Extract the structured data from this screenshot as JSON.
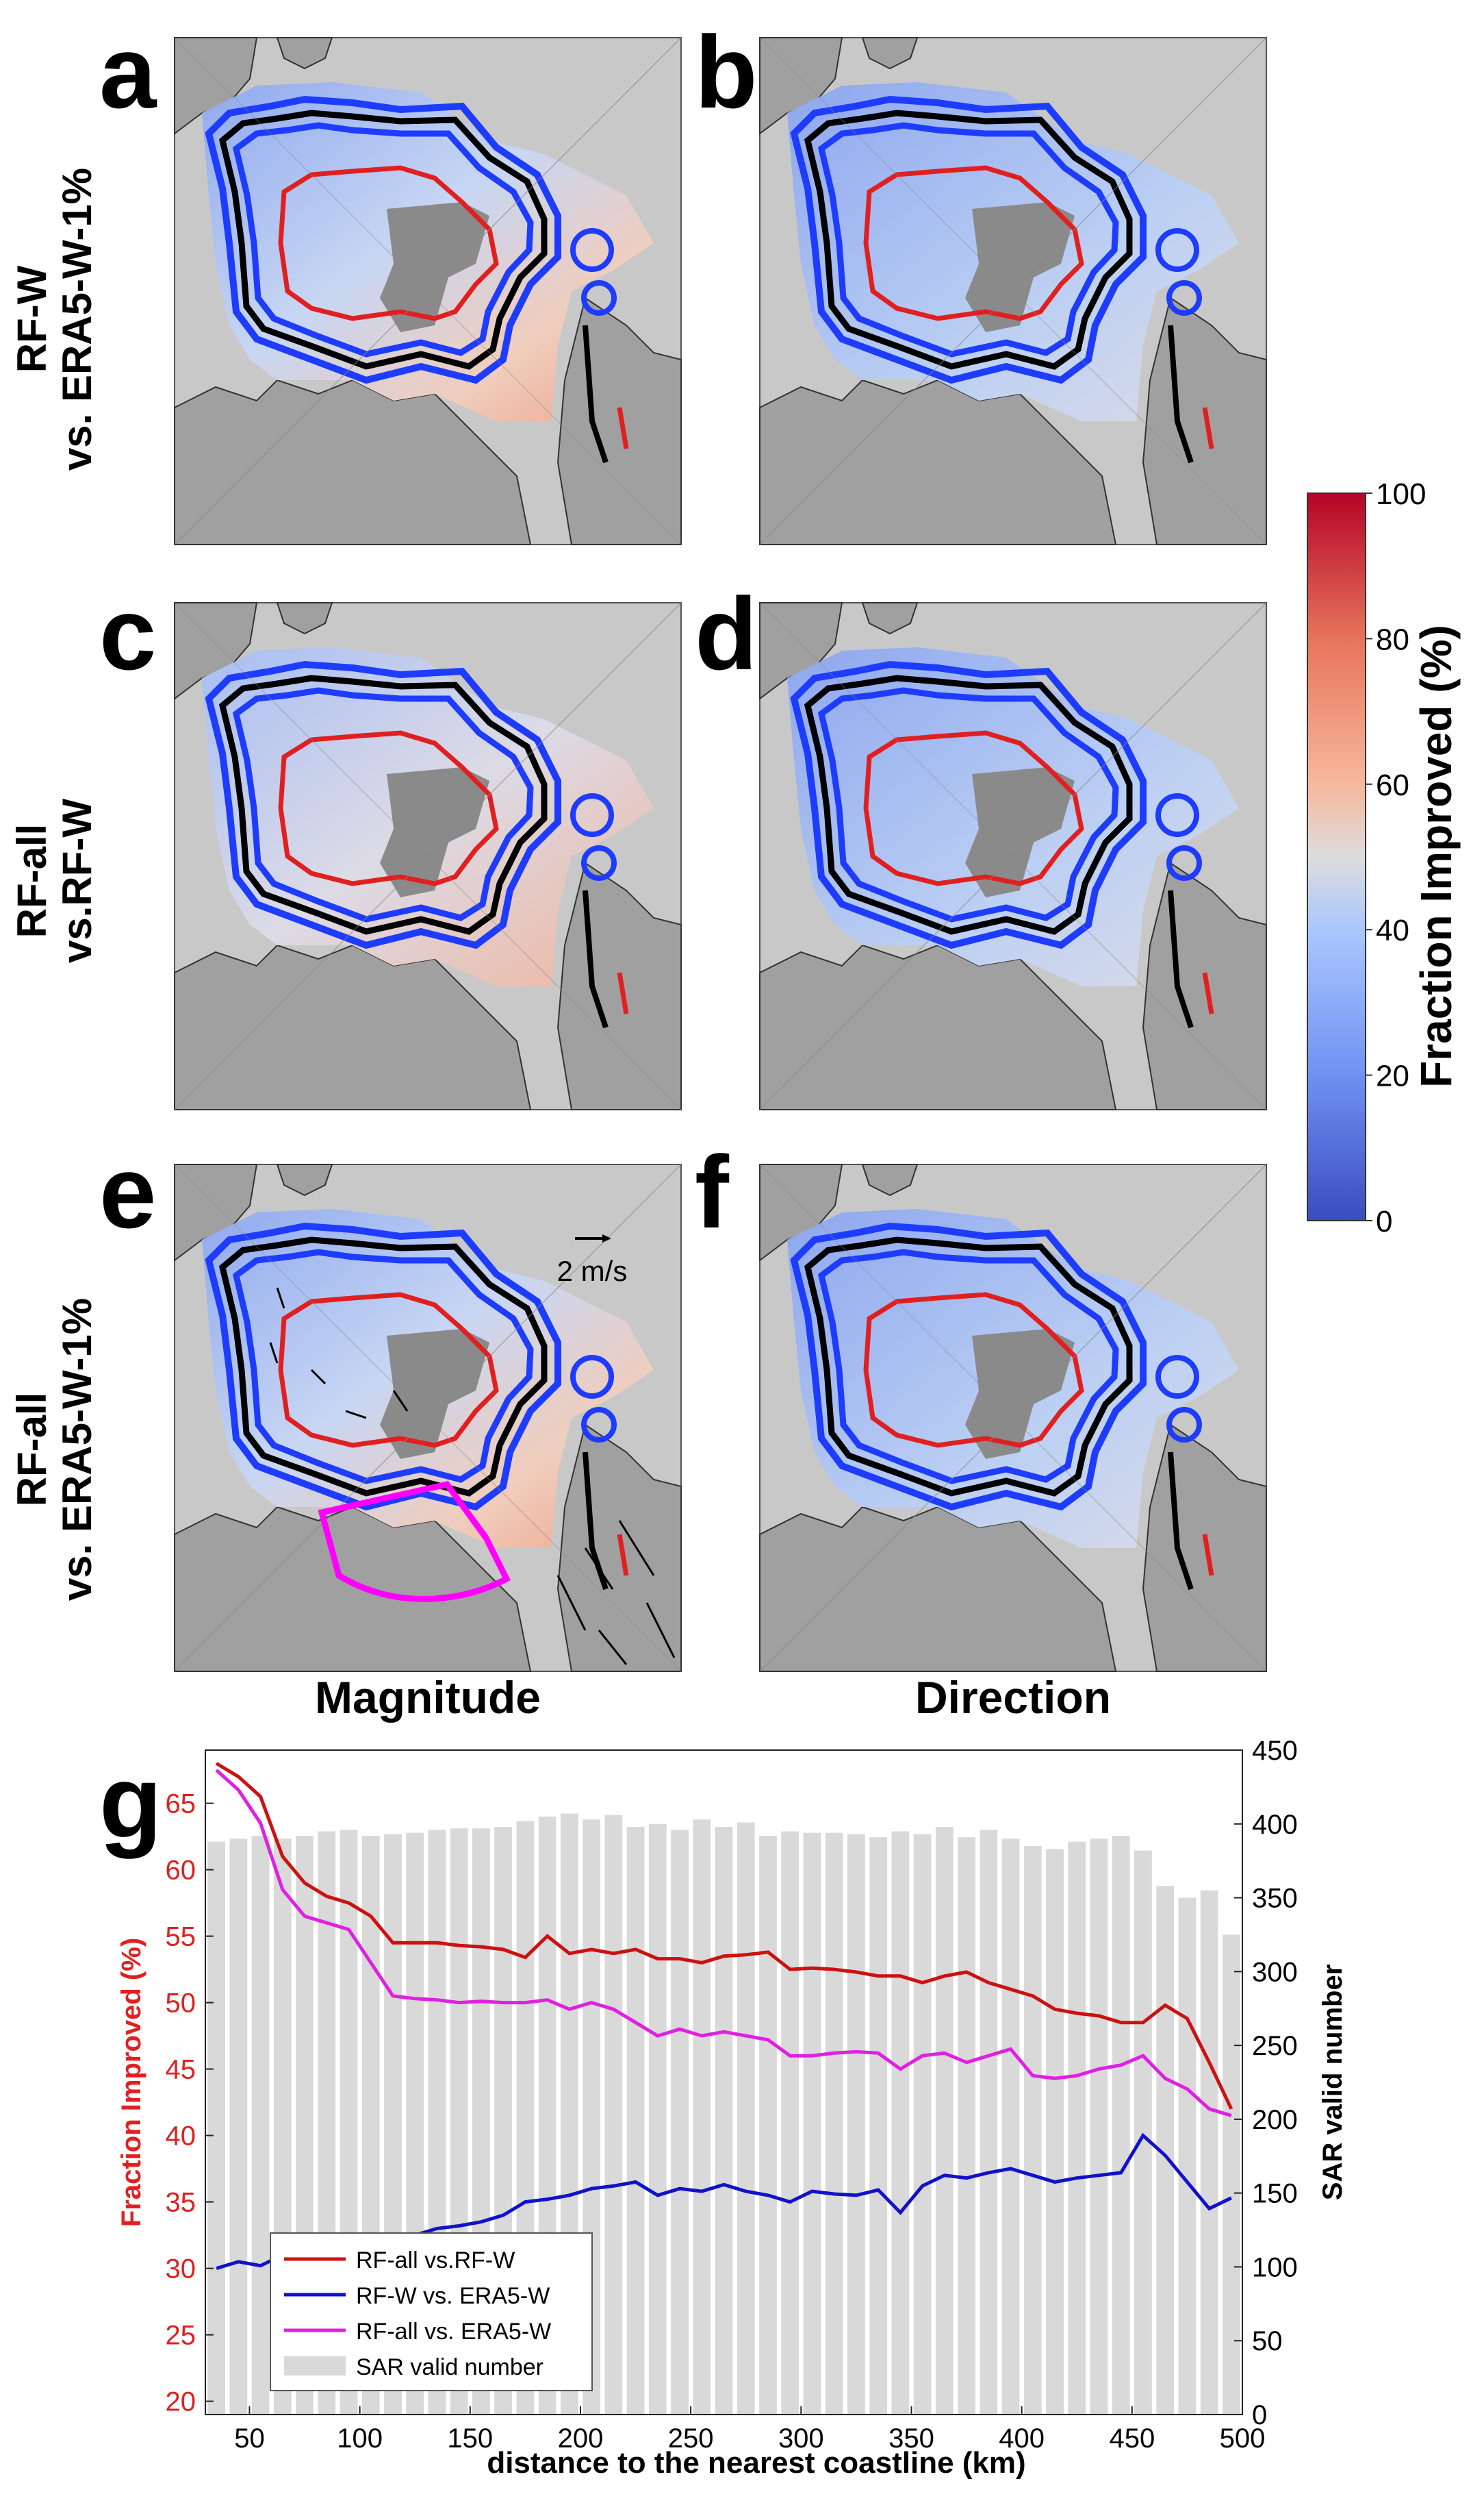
{
  "figure": {
    "panel_letters": [
      "a",
      "b",
      "c",
      "d",
      "e",
      "f",
      "g"
    ],
    "row_labels": [
      [
        "RF-W",
        "vs. ERA5-W-1%"
      ],
      [
        "RF-all",
        "vs.RF-W"
      ],
      [
        "RF-all",
        "vs. ERA5-W-1%"
      ]
    ],
    "column_labels": [
      "Magnitude",
      "Direction"
    ],
    "vector_scale_label": "2 m/s"
  },
  "colorbar": {
    "label": "Fraction Improved (%)",
    "ticks": [
      "0",
      "20",
      "40",
      "60",
      "80",
      "100"
    ],
    "min": 0,
    "max": 100,
    "colors": [
      "#3b4cc0",
      "#7b9ff9",
      "#c0d4f5",
      "#f2cbb7",
      "#ee8468",
      "#b40426"
    ]
  },
  "colors": {
    "map_background": "#c8c8c8",
    "land": "#a0a0a0",
    "contour_red": "#e02020",
    "contour_black": "#000000",
    "contour_blue": "#1e3cff",
    "magenta": "#ff00ff",
    "bar_gray": "#d9d9d9"
  },
  "chart_data": {
    "type": "line",
    "xlabel": "distance to the nearest coastline (km)",
    "ylabel": "Fraction Improved (%)",
    "y2label": "SAR valid number",
    "xlim": [
      30,
      500
    ],
    "ylim": [
      19,
      69
    ],
    "y2lim": [
      0,
      450
    ],
    "xticks": [
      50,
      100,
      150,
      200,
      250,
      300,
      350,
      400,
      450,
      500
    ],
    "yticks": [
      20,
      25,
      30,
      35,
      40,
      45,
      50,
      55,
      60,
      65
    ],
    "y2ticks": [
      0,
      50,
      100,
      150,
      200,
      250,
      300,
      350,
      400,
      450
    ],
    "legend_position": "bottom-left",
    "x": [
      35,
      45,
      55,
      65,
      75,
      85,
      95,
      105,
      115,
      125,
      135,
      145,
      155,
      165,
      175,
      185,
      195,
      205,
      215,
      225,
      235,
      245,
      255,
      265,
      275,
      285,
      295,
      305,
      315,
      325,
      335,
      345,
      355,
      365,
      375,
      385,
      395,
      405,
      415,
      425,
      435,
      445,
      455,
      465,
      475,
      485,
      495
    ],
    "series": [
      {
        "name": "RF-all vs.RF-W",
        "color": "#cc1111",
        "values": [
          68,
          67,
          65.5,
          61,
          59,
          58,
          57.5,
          56.5,
          54.5,
          54.5,
          54.5,
          54.3,
          54.2,
          54,
          53.4,
          55,
          53.7,
          54,
          53.7,
          54,
          53.3,
          53.3,
          53,
          53.5,
          53.6,
          53.8,
          52.5,
          52.6,
          52.5,
          52.3,
          52,
          52,
          51.5,
          52,
          52.3,
          51.5,
          51,
          50.5,
          49.5,
          49.2,
          49,
          48.5,
          48.5,
          49.8,
          48.8,
          45.5,
          42
        ]
      },
      {
        "name": "RF-W vs. ERA5-W",
        "color": "#1111cc",
        "values": [
          30,
          30.5,
          30.2,
          31,
          31.2,
          31.5,
          32,
          32.3,
          32.5,
          32.5,
          33,
          33.2,
          33.5,
          34,
          35,
          35.2,
          35.5,
          36,
          36.2,
          36.5,
          35.5,
          36,
          35.8,
          36.3,
          35.8,
          35.5,
          35,
          35.8,
          35.6,
          35.5,
          35.9,
          34.2,
          36.2,
          37,
          36.8,
          37.2,
          37.5,
          37,
          36.5,
          36.8,
          37,
          37.2,
          40,
          38.5,
          36.5,
          34.5,
          35.3
        ]
      },
      {
        "name": "RF-all vs. ERA5-W",
        "color": "#e020e0",
        "values": [
          67.5,
          66,
          63.5,
          58.5,
          56.5,
          56,
          55.5,
          53,
          50.5,
          50.3,
          50.2,
          50,
          50.1,
          50,
          50,
          50.2,
          49.5,
          50,
          49.5,
          48.5,
          47.5,
          48,
          47.5,
          47.8,
          47.5,
          47.2,
          46,
          46,
          46.2,
          46.3,
          46.2,
          45,
          46,
          46.2,
          45.5,
          46,
          46.5,
          44.5,
          44.3,
          44.5,
          45,
          45.3,
          46,
          44.3,
          43.5,
          42,
          41.5
        ]
      }
    ],
    "bars": {
      "name": "SAR valid number",
      "color": "#d9d9d9",
      "values": [
        388,
        390,
        392,
        390,
        392,
        395,
        396,
        392,
        393,
        394,
        396,
        397,
        397,
        398,
        402,
        405,
        407,
        403,
        406,
        398,
        400,
        396,
        403,
        398,
        401,
        392,
        395,
        394,
        394,
        393,
        391,
        395,
        393,
        398,
        391,
        396,
        390,
        385,
        383,
        388,
        390,
        392,
        382,
        358,
        350,
        355,
        325
      ]
    }
  }
}
